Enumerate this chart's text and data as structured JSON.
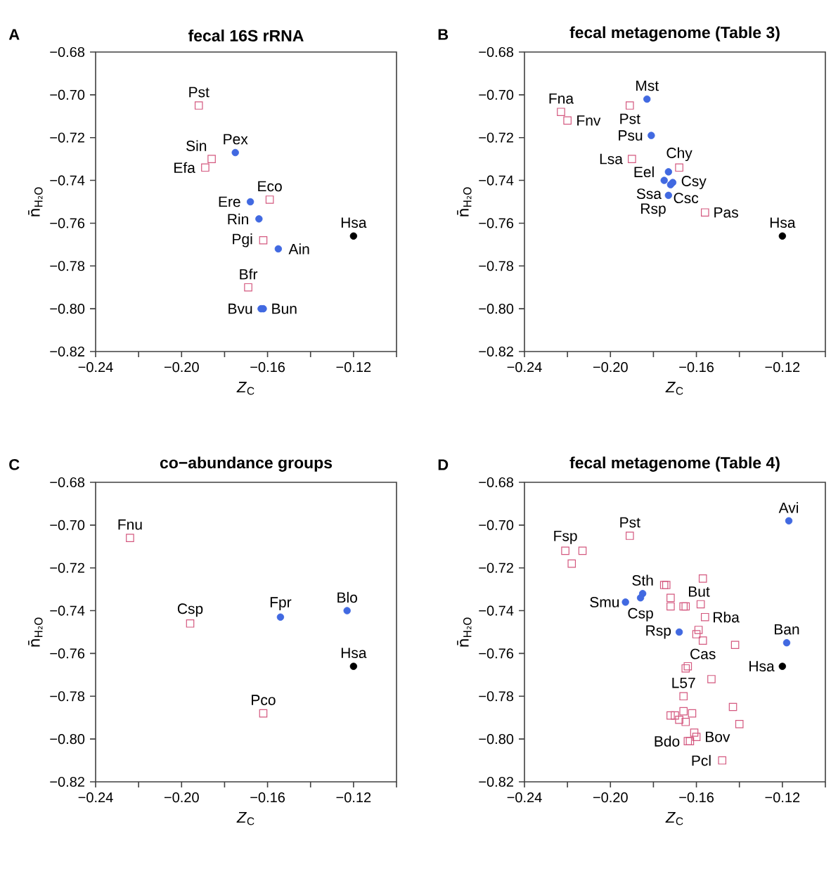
{
  "chart_data": [
    {
      "type": "scatter",
      "title": "fecal 16S rRNA",
      "xlabel": "*Z*$_{C}$",
      "ylabel": "n̄$_{H₂O}$",
      "xlim": [
        -0.24,
        -0.1
      ],
      "ylim": [
        -0.82,
        -0.68
      ],
      "xticks": [
        {
          "value": -0.24,
          "label": "−0.24"
        },
        {
          "value": -0.22,
          "label": null
        },
        {
          "value": -0.2,
          "label": "−0.20"
        },
        {
          "value": -0.18,
          "label": null
        },
        {
          "value": -0.16,
          "label": "−0.16"
        },
        {
          "value": -0.14,
          "label": null
        },
        {
          "value": -0.12,
          "label": "−0.12"
        },
        {
          "value": -0.1,
          "label": null
        }
      ],
      "yticks": [
        {
          "value": -0.82,
          "label": "−0.82"
        },
        {
          "value": -0.8,
          "label": "−0.80"
        },
        {
          "value": -0.78,
          "label": "−0.78"
        },
        {
          "value": -0.76,
          "label": "−0.76"
        },
        {
          "value": -0.74,
          "label": "−0.74"
        },
        {
          "value": -0.72,
          "label": "−0.72"
        },
        {
          "value": -0.7,
          "label": "−0.70"
        },
        {
          "value": -0.68,
          "label": "−0.68"
        }
      ],
      "series": [
        {
          "color": "#d4587f",
          "marker": "square",
          "x": [
            -0.192,
            -0.186,
            -0.189,
            -0.159,
            -0.162,
            -0.169
          ],
          "values": [
            -0.705,
            -0.73,
            -0.734,
            -0.749,
            -0.768,
            -0.79
          ]
        },
        {
          "color": "#4169e1",
          "marker": "circle",
          "x": [
            -0.175,
            -0.168,
            -0.164,
            -0.155,
            -0.163,
            -0.162
          ],
          "values": [
            -0.727,
            -0.75,
            -0.758,
            -0.772,
            -0.8,
            -0.8
          ]
        },
        {
          "color": "#000000",
          "marker": "circle",
          "x": [
            -0.12
          ],
          "values": [
            -0.766
          ]
        }
      ],
      "annotations": [
        "A",
        {
          "text": "Pst",
          "x": -0.192,
          "y": -0.705
        },
        {
          "text": "Pex",
          "x": -0.175,
          "y": -0.727
        },
        {
          "text": "Sin",
          "x": -0.186,
          "y": -0.73
        },
        {
          "text": "Efa",
          "x": -0.189,
          "y": -0.734
        },
        {
          "text": "Ere",
          "x": -0.168,
          "y": -0.75
        },
        {
          "text": "Eco",
          "x": -0.159,
          "y": -0.749
        },
        {
          "text": "Rin",
          "x": -0.164,
          "y": -0.758
        },
        {
          "text": "Pgi",
          "x": -0.162,
          "y": -0.768
        },
        {
          "text": "Ain",
          "x": -0.155,
          "y": -0.772
        },
        {
          "text": "Bfr",
          "x": -0.169,
          "y": -0.79
        },
        {
          "text": "Bun",
          "x": -0.162,
          "y": -0.8
        },
        {
          "text": "Bvu",
          "x": -0.163,
          "y": -0.8
        },
        {
          "text": "Hsa",
          "x": -0.12,
          "y": -0.766
        }
      ]
    },
    {
      "type": "scatter",
      "title": "fecal metagenome (Table 3)",
      "xlabel": "*Z*$_{C}$",
      "ylabel": "n̄$_{H₂O}$",
      "xlim": [
        -0.24,
        -0.1
      ],
      "ylim": [
        -0.82,
        -0.68
      ],
      "xticks": [
        {
          "value": -0.24,
          "label": "−0.24"
        },
        {
          "value": -0.22,
          "label": null
        },
        {
          "value": -0.2,
          "label": "−0.20"
        },
        {
          "value": -0.18,
          "label": null
        },
        {
          "value": -0.16,
          "label": "−0.16"
        },
        {
          "value": -0.14,
          "label": null
        },
        {
          "value": -0.12,
          "label": "−0.12"
        },
        {
          "value": -0.1,
          "label": null
        }
      ],
      "yticks": [
        {
          "value": -0.82,
          "label": "−0.82"
        },
        {
          "value": -0.8,
          "label": "−0.80"
        },
        {
          "value": -0.78,
          "label": "−0.78"
        },
        {
          "value": -0.76,
          "label": "−0.76"
        },
        {
          "value": -0.74,
          "label": "−0.74"
        },
        {
          "value": -0.72,
          "label": "−0.72"
        },
        {
          "value": -0.7,
          "label": "−0.70"
        },
        {
          "value": -0.68,
          "label": "−0.68"
        }
      ],
      "series": [
        {
          "color": "#d4587f",
          "marker": "square",
          "x": [
            -0.223,
            -0.22,
            -0.191,
            -0.19,
            -0.168,
            -0.156
          ],
          "values": [
            -0.708,
            -0.712,
            -0.705,
            -0.73,
            -0.734,
            -0.755
          ]
        },
        {
          "color": "#4169e1",
          "marker": "circle",
          "x": [
            -0.183,
            -0.181,
            -0.173,
            -0.175,
            -0.171,
            -0.172,
            -0.173
          ],
          "values": [
            -0.702,
            -0.719,
            -0.736,
            -0.74,
            -0.741,
            -0.742,
            -0.747
          ]
        },
        {
          "color": "#000000",
          "marker": "circle",
          "x": [
            -0.12
          ],
          "values": [
            -0.766
          ]
        }
      ],
      "annotations": [
        "B",
        {
          "text": "Fna",
          "x": -0.223,
          "y": -0.708
        },
        {
          "text": "Fnv",
          "x": -0.22,
          "y": -0.712
        },
        {
          "text": "Pst",
          "x": -0.191,
          "y": -0.705
        },
        {
          "text": "Mst",
          "x": -0.183,
          "y": -0.702
        },
        {
          "text": "Psu",
          "x": -0.181,
          "y": -0.719
        },
        {
          "text": "Lsa",
          "x": -0.19,
          "y": -0.73
        },
        {
          "text": "Chy",
          "x": -0.168,
          "y": -0.734
        },
        {
          "text": "Eel",
          "x": -0.173,
          "y": -0.736
        },
        {
          "text": "Ssa",
          "x": -0.175,
          "y": -0.74
        },
        {
          "text": "Csy",
          "x": -0.171,
          "y": -0.741
        },
        {
          "text": "Csc",
          "x": -0.172,
          "y": -0.742
        },
        {
          "text": "Rsp",
          "x": -0.173,
          "y": -0.747
        },
        {
          "text": "Pas",
          "x": -0.156,
          "y": -0.755
        },
        {
          "text": "Hsa",
          "x": -0.12,
          "y": -0.766
        }
      ]
    },
    {
      "type": "scatter",
      "title": "co−abundance groups",
      "xlabel": "*Z*$_{C}$",
      "ylabel": "n̄$_{H₂O}$",
      "xlim": [
        -0.24,
        -0.1
      ],
      "ylim": [
        -0.82,
        -0.68
      ],
      "xticks": [
        {
          "value": -0.24,
          "label": "−0.24"
        },
        {
          "value": -0.22,
          "label": null
        },
        {
          "value": -0.2,
          "label": "−0.20"
        },
        {
          "value": -0.18,
          "label": null
        },
        {
          "value": -0.16,
          "label": "−0.16"
        },
        {
          "value": -0.14,
          "label": null
        },
        {
          "value": -0.12,
          "label": "−0.12"
        },
        {
          "value": -0.1,
          "label": null
        }
      ],
      "yticks": [
        {
          "value": -0.82,
          "label": "−0.82"
        },
        {
          "value": -0.8,
          "label": "−0.80"
        },
        {
          "value": -0.78,
          "label": "−0.78"
        },
        {
          "value": -0.76,
          "label": "−0.76"
        },
        {
          "value": -0.74,
          "label": "−0.74"
        },
        {
          "value": -0.72,
          "label": "−0.72"
        },
        {
          "value": -0.7,
          "label": "−0.70"
        },
        {
          "value": -0.68,
          "label": "−0.68"
        }
      ],
      "series": [
        {
          "color": "#d4587f",
          "marker": "square",
          "x": [
            -0.224,
            -0.196,
            -0.162
          ],
          "values": [
            -0.706,
            -0.746,
            -0.788
          ]
        },
        {
          "color": "#4169e1",
          "marker": "circle",
          "x": [
            -0.154,
            -0.123
          ],
          "values": [
            -0.743,
            -0.74
          ]
        },
        {
          "color": "#000000",
          "marker": "circle",
          "x": [
            -0.12
          ],
          "values": [
            -0.766
          ]
        }
      ],
      "annotations": [
        "C",
        {
          "text": "Fnu",
          "x": -0.224,
          "y": -0.706
        },
        {
          "text": "Csp",
          "x": -0.196,
          "y": -0.746
        },
        {
          "text": "Fpr",
          "x": -0.154,
          "y": -0.743
        },
        {
          "text": "Blo",
          "x": -0.123,
          "y": -0.74
        },
        {
          "text": "Hsa",
          "x": -0.12,
          "y": -0.766
        },
        {
          "text": "Pco",
          "x": -0.162,
          "y": -0.788
        }
      ]
    },
    {
      "type": "scatter",
      "title": "fecal metagenome (Table 4)",
      "xlabel": "*Z*$_{C}$",
      "ylabel": "n̄$_{H₂O}$",
      "xlim": [
        -0.24,
        -0.1
      ],
      "ylim": [
        -0.82,
        -0.68
      ],
      "xticks": [
        {
          "value": -0.24,
          "label": "−0.24"
        },
        {
          "value": -0.22,
          "label": null
        },
        {
          "value": -0.2,
          "label": "−0.20"
        },
        {
          "value": -0.18,
          "label": null
        },
        {
          "value": -0.16,
          "label": "−0.16"
        },
        {
          "value": -0.14,
          "label": null
        },
        {
          "value": -0.12,
          "label": "−0.12"
        },
        {
          "value": -0.1,
          "label": null
        }
      ],
      "yticks": [
        {
          "value": -0.82,
          "label": "−0.82"
        },
        {
          "value": -0.8,
          "label": "−0.80"
        },
        {
          "value": -0.78,
          "label": "−0.78"
        },
        {
          "value": -0.76,
          "label": "−0.76"
        },
        {
          "value": -0.74,
          "label": "−0.74"
        },
        {
          "value": -0.72,
          "label": "−0.72"
        },
        {
          "value": -0.7,
          "label": "−0.70"
        },
        {
          "value": -0.68,
          "label": "−0.68"
        }
      ],
      "series": [
        {
          "color": "#d4587f",
          "marker": "square",
          "x": [
            -0.221,
            -0.213,
            -0.218,
            -0.191,
            -0.175,
            -0.174,
            -0.157,
            -0.172,
            -0.172,
            -0.166,
            -0.165,
            -0.158,
            -0.156,
            -0.159,
            -0.16,
            -0.157,
            -0.142,
            -0.164,
            -0.165,
            -0.153,
            -0.166,
            -0.172,
            -0.17,
            -0.168,
            -0.166,
            -0.162,
            -0.165,
            -0.143,
            -0.14,
            -0.163,
            -0.161,
            -0.16,
            -0.164,
            -0.148
          ],
          "values": [
            -0.712,
            -0.712,
            -0.718,
            -0.705,
            -0.728,
            -0.728,
            -0.725,
            -0.734,
            -0.738,
            -0.738,
            -0.738,
            -0.737,
            -0.743,
            -0.749,
            -0.751,
            -0.754,
            -0.756,
            -0.766,
            -0.767,
            -0.772,
            -0.78,
            -0.789,
            -0.789,
            -0.791,
            -0.787,
            -0.788,
            -0.792,
            -0.785,
            -0.793,
            -0.801,
            -0.797,
            -0.799,
            -0.801,
            -0.81
          ]
        },
        {
          "color": "#4169e1",
          "marker": "circle",
          "x": [
            -0.117,
            -0.118,
            -0.193,
            -0.185,
            -0.186,
            -0.168
          ],
          "values": [
            -0.698,
            -0.755,
            -0.736,
            -0.732,
            -0.734,
            -0.75
          ]
        },
        {
          "color": "#000000",
          "marker": "circle",
          "x": [
            -0.12
          ],
          "values": [
            -0.766
          ]
        }
      ],
      "annotations": [
        "D",
        {
          "text": "Avi",
          "x": -0.117,
          "y": -0.698
        },
        {
          "text": "Pst",
          "x": -0.191,
          "y": -0.705
        },
        {
          "text": "Fsp",
          "x": -0.221,
          "y": -0.712
        },
        {
          "text": "Sth",
          "x": -0.185,
          "y": -0.732
        },
        {
          "text": "Smu",
          "x": -0.193,
          "y": -0.736
        },
        {
          "text": "Csp",
          "x": -0.186,
          "y": -0.734
        },
        {
          "text": "But",
          "x": -0.166,
          "y": -0.738
        },
        {
          "text": "Rsp",
          "x": -0.168,
          "y": -0.75
        },
        {
          "text": "Rba",
          "x": -0.156,
          "y": -0.743
        },
        {
          "text": "Ban",
          "x": -0.118,
          "y": -0.755
        },
        {
          "text": "Hsa",
          "x": -0.12,
          "y": -0.766
        },
        {
          "text": "Cas",
          "x": -0.157,
          "y": -0.754
        },
        {
          "text": "L57",
          "x": -0.166,
          "y": -0.78
        },
        {
          "text": "Bdo",
          "x": -0.164,
          "y": -0.801
        },
        {
          "text": "Bov",
          "x": -0.16,
          "y": -0.799
        },
        {
          "text": "Pcl",
          "x": -0.148,
          "y": -0.81
        }
      ]
    }
  ]
}
